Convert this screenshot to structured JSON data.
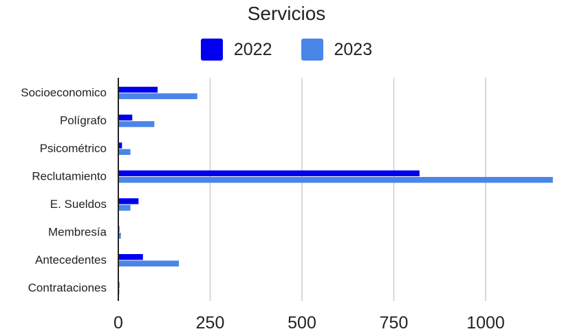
{
  "chart_data": {
    "type": "bar",
    "orientation": "horizontal",
    "title": "Servicios",
    "categories": [
      "Socioeconomico",
      "Polígrafo",
      "Psicométrico",
      "Reclutamiento",
      "E. Sueldos",
      "Membresía",
      "Antecedentes",
      "Contrataciones"
    ],
    "series": [
      {
        "name": "2022",
        "color": "#0000ee",
        "values": [
          107,
          38,
          10,
          820,
          55,
          2,
          67,
          2
        ]
      },
      {
        "name": "2023",
        "color": "#4a86e8",
        "values": [
          215,
          98,
          33,
          1183,
          33,
          7,
          165,
          2
        ]
      }
    ],
    "xticks": [
      "0",
      "250",
      "500",
      "750",
      "1000"
    ],
    "xlim": [
      0,
      1183
    ],
    "grid": true,
    "legend_position": "top"
  }
}
